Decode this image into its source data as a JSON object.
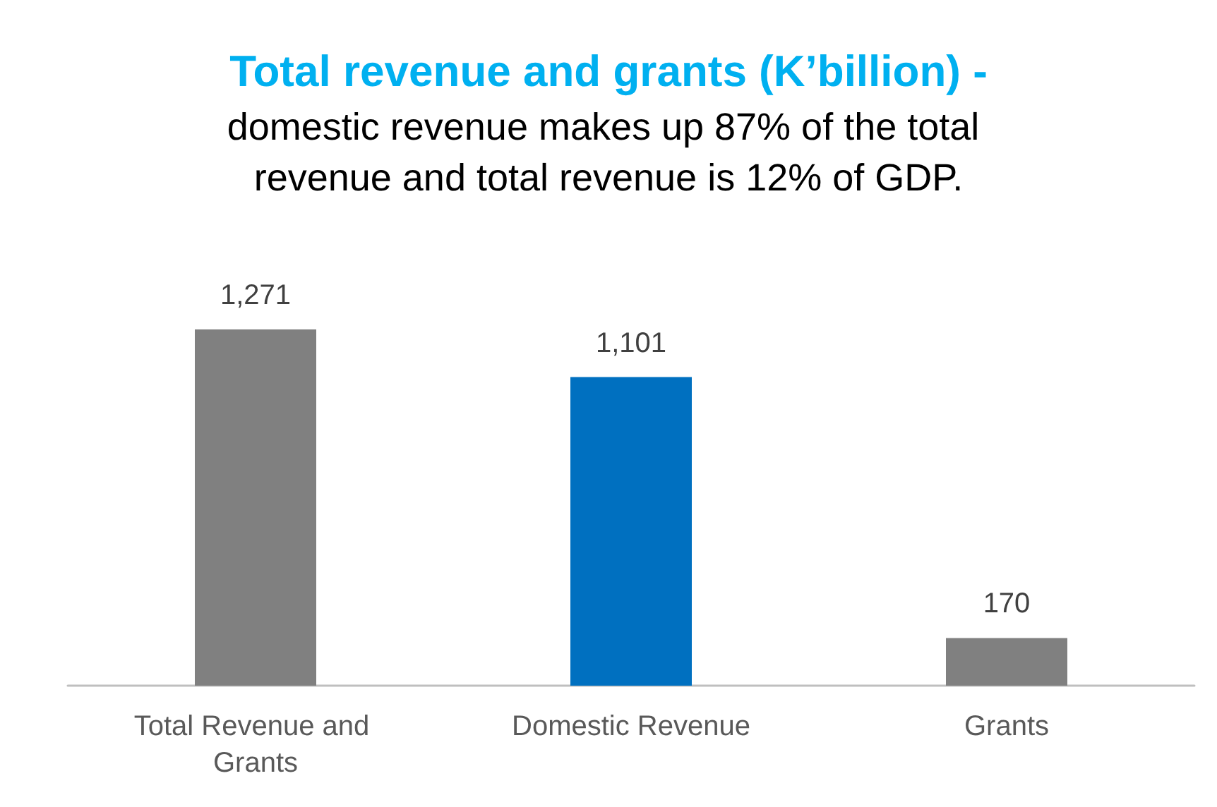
{
  "chart_data": {
    "type": "bar",
    "title": "Total revenue and grants (K’billion) -",
    "subtitle": "domestic revenue makes up 87% of the total revenue and total revenue is 12% of GDP.",
    "categories": [
      "Total Revenue and Grants",
      "Domestic Revenue",
      "Grants"
    ],
    "values": [
      1271,
      1101,
      170
    ],
    "colors": [
      "#808080",
      "#0070c0",
      "#808080"
    ],
    "value_labels": [
      "1,271",
      "1,101",
      "170"
    ],
    "grid": false
  }
}
